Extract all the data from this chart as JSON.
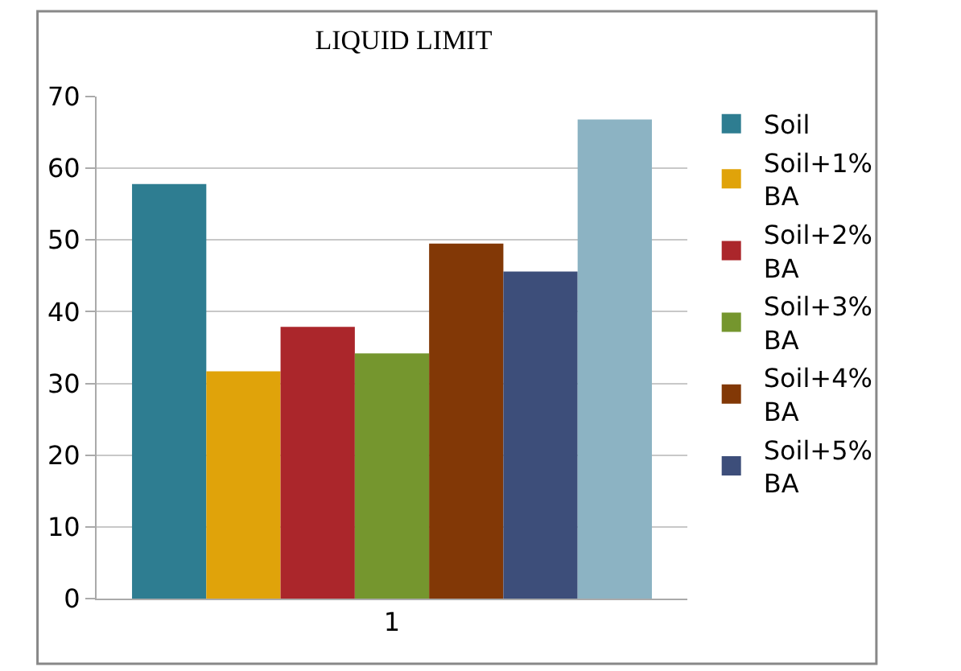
{
  "chart_data": {
    "type": "bar",
    "title": "LIQUID LIMIT",
    "categories": [
      "1"
    ],
    "series": [
      {
        "name": "Soil",
        "color": "#2e7d91",
        "values": [
          57.8
        ]
      },
      {
        "name": "Soil+1% BA",
        "color": "#e0a30a",
        "values": [
          31.7
        ]
      },
      {
        "name": "Soil+2% BA",
        "color": "#ab262b",
        "values": [
          37.9
        ]
      },
      {
        "name": "Soil+3% BA",
        "color": "#75962e",
        "values": [
          34.2
        ]
      },
      {
        "name": "Soil+4% BA",
        "color": "#823806",
        "values": [
          49.5
        ]
      },
      {
        "name": "Soil+5% BA",
        "color": "#3d4e7a",
        "values": [
          45.6
        ]
      },
      {
        "color": "#8cb3c3",
        "values": [
          66.8
        ]
      }
    ],
    "ylim": [
      0,
      70
    ],
    "yticks": [
      0,
      10,
      20,
      30,
      40,
      50,
      60,
      70
    ],
    "grid": "y",
    "legend": "right"
  }
}
